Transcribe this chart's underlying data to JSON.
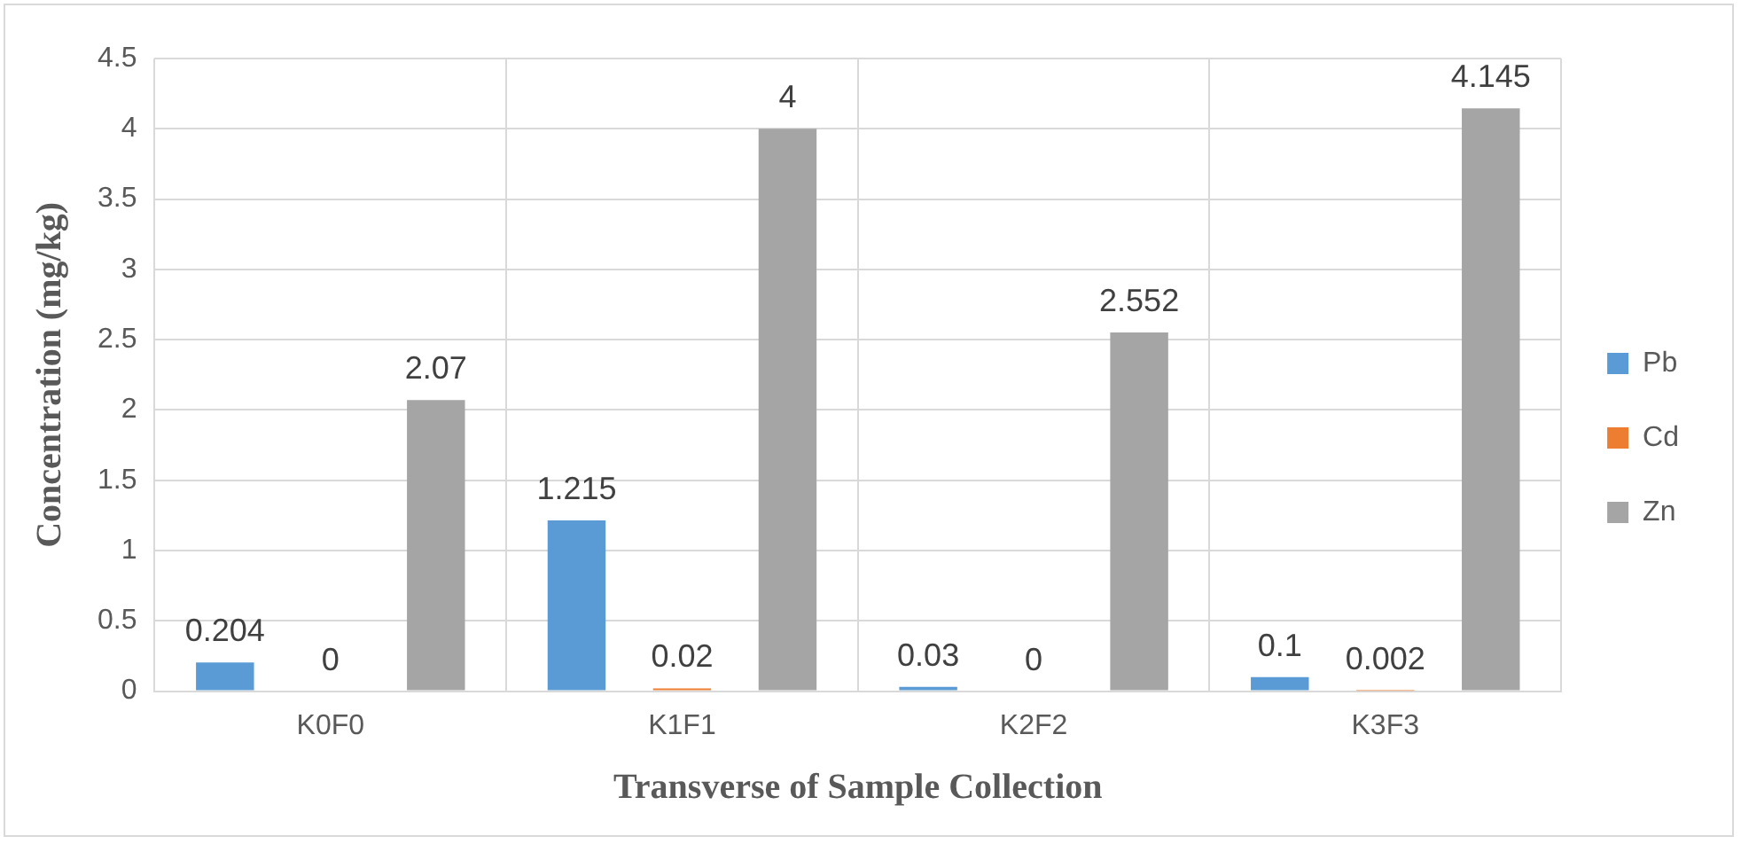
{
  "chart_data": {
    "type": "bar",
    "xlabel": "Transverse of Sample Collection",
    "ylabel": "Concentration (mg/kg)",
    "categories": [
      "K0F0",
      "K1F1",
      "K2F2",
      "K3F3"
    ],
    "series": [
      {
        "name": "Pb",
        "color": "#5b9bd5",
        "values": [
          0.204,
          1.215,
          0.03,
          0.1
        ]
      },
      {
        "name": "Cd",
        "color": "#ed7d31",
        "values": [
          0,
          0.02,
          0,
          0.002
        ]
      },
      {
        "name": "Zn",
        "color": "#a5a5a5",
        "values": [
          2.07,
          4,
          2.552,
          4.145
        ]
      }
    ],
    "ylim": [
      0,
      4.5
    ],
    "yticks": [
      0,
      0.5,
      1,
      1.5,
      2,
      2.5,
      3,
      3.5,
      4,
      4.5
    ],
    "grid": true,
    "legend": "right",
    "data_labels": true
  }
}
